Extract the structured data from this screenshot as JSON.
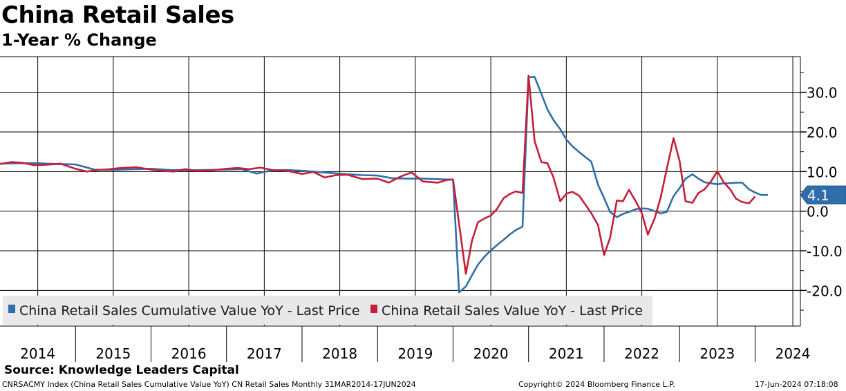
{
  "chart_data": {
    "type": "line",
    "title": "China Retail Sales",
    "subtitle": "1-Year % Change",
    "y_ticks": [
      "30.0",
      "20.0",
      "10.0",
      "0.0",
      "-10.0",
      "-20.0"
    ],
    "y_tick_values": [
      30,
      20,
      10,
      0,
      -10,
      -20
    ],
    "ylim": [
      -29,
      39
    ],
    "x_labels": [
      "2014",
      "2015",
      "2016",
      "2017",
      "2018",
      "2019",
      "2020",
      "2021",
      "2022",
      "2023",
      "2024"
    ],
    "x_range": [
      2014.0,
      2024.6
    ],
    "last_value_label": "4.1",
    "series": [
      {
        "name": "China Retail Sales Cumulative Value YoY - Last Price",
        "color": "#2f6eaa",
        "points": [
          [
            2014.0,
            12.0
          ],
          [
            2014.25,
            12.1
          ],
          [
            2014.5,
            12.1
          ],
          [
            2014.75,
            11.9
          ],
          [
            2015.0,
            11.8
          ],
          [
            2015.25,
            10.5
          ],
          [
            2015.5,
            10.4
          ],
          [
            2015.75,
            10.6
          ],
          [
            2016.0,
            10.7
          ],
          [
            2016.25,
            10.4
          ],
          [
            2016.5,
            10.3
          ],
          [
            2016.75,
            10.4
          ],
          [
            2017.0,
            10.5
          ],
          [
            2017.2,
            10.6
          ],
          [
            2017.4,
            9.5
          ],
          [
            2017.6,
            10.3
          ],
          [
            2017.8,
            10.4
          ],
          [
            2018.0,
            10.2
          ],
          [
            2018.2,
            9.9
          ],
          [
            2018.4,
            9.6
          ],
          [
            2018.6,
            9.3
          ],
          [
            2018.8,
            9.1
          ],
          [
            2019.0,
            9.0
          ],
          [
            2019.2,
            8.3
          ],
          [
            2019.4,
            8.2
          ],
          [
            2019.6,
            8.2
          ],
          [
            2019.75,
            8.1
          ],
          [
            2019.92,
            8.0
          ],
          [
            2020.0,
            8.0
          ],
          [
            2020.08,
            -20.5
          ],
          [
            2020.17,
            -19.0
          ],
          [
            2020.25,
            -16.2
          ],
          [
            2020.33,
            -13.5
          ],
          [
            2020.42,
            -11.4
          ],
          [
            2020.5,
            -9.9
          ],
          [
            2020.58,
            -8.6
          ],
          [
            2020.67,
            -7.2
          ],
          [
            2020.75,
            -5.9
          ],
          [
            2020.83,
            -4.8
          ],
          [
            2020.92,
            -3.9
          ],
          [
            2021.0,
            33.8
          ],
          [
            2021.08,
            33.9
          ],
          [
            2021.17,
            29.6
          ],
          [
            2021.25,
            25.7
          ],
          [
            2021.33,
            23.0
          ],
          [
            2021.42,
            20.7
          ],
          [
            2021.5,
            18.1
          ],
          [
            2021.58,
            16.4
          ],
          [
            2021.67,
            14.9
          ],
          [
            2021.75,
            13.7
          ],
          [
            2021.83,
            12.5
          ],
          [
            2021.92,
            6.7
          ],
          [
            2022.0,
            3.3
          ],
          [
            2022.08,
            -0.2
          ],
          [
            2022.17,
            -1.5
          ],
          [
            2022.25,
            -0.7
          ],
          [
            2022.33,
            -0.2
          ],
          [
            2022.42,
            0.5
          ],
          [
            2022.5,
            0.7
          ],
          [
            2022.58,
            0.6
          ],
          [
            2022.67,
            0.0
          ],
          [
            2022.75,
            -0.6
          ],
          [
            2022.83,
            -0.2
          ],
          [
            2022.92,
            3.8
          ],
          [
            2023.0,
            5.8
          ],
          [
            2023.08,
            8.2
          ],
          [
            2023.17,
            9.3
          ],
          [
            2023.25,
            8.2
          ],
          [
            2023.33,
            7.3
          ],
          [
            2023.42,
            7.0
          ],
          [
            2023.5,
            6.8
          ],
          [
            2023.58,
            7.0
          ],
          [
            2023.67,
            7.1
          ],
          [
            2023.75,
            7.2
          ],
          [
            2023.83,
            7.2
          ],
          [
            2023.92,
            5.5
          ],
          [
            2024.0,
            4.7
          ],
          [
            2024.08,
            4.1
          ],
          [
            2024.17,
            4.1
          ]
        ]
      },
      {
        "name": "China Retail Sales Value YoY - Last Price",
        "color": "#c41e3a",
        "points": [
          [
            2014.0,
            11.9
          ],
          [
            2014.15,
            12.4
          ],
          [
            2014.3,
            12.2
          ],
          [
            2014.45,
            11.6
          ],
          [
            2014.6,
            11.7
          ],
          [
            2014.8,
            12.0
          ],
          [
            2015.0,
            10.7
          ],
          [
            2015.15,
            10.0
          ],
          [
            2015.3,
            10.4
          ],
          [
            2015.45,
            10.6
          ],
          [
            2015.6,
            10.9
          ],
          [
            2015.8,
            11.1
          ],
          [
            2016.0,
            10.5
          ],
          [
            2016.15,
            10.2
          ],
          [
            2016.3,
            10.0
          ],
          [
            2016.45,
            10.6
          ],
          [
            2016.6,
            10.2
          ],
          [
            2016.8,
            10.3
          ],
          [
            2017.0,
            10.7
          ],
          [
            2017.15,
            10.9
          ],
          [
            2017.3,
            10.6
          ],
          [
            2017.45,
            11.0
          ],
          [
            2017.6,
            10.4
          ],
          [
            2017.8,
            10.2
          ],
          [
            2018.0,
            9.4
          ],
          [
            2018.15,
            9.9
          ],
          [
            2018.3,
            8.5
          ],
          [
            2018.45,
            9.1
          ],
          [
            2018.6,
            9.2
          ],
          [
            2018.8,
            8.1
          ],
          [
            2019.0,
            8.2
          ],
          [
            2019.15,
            7.2
          ],
          [
            2019.3,
            8.7
          ],
          [
            2019.45,
            9.8
          ],
          [
            2019.6,
            7.5
          ],
          [
            2019.8,
            7.2
          ],
          [
            2019.92,
            7.9
          ],
          [
            2020.0,
            8.0
          ],
          [
            2020.17,
            -15.8
          ],
          [
            2020.25,
            -7.5
          ],
          [
            2020.33,
            -2.8
          ],
          [
            2020.42,
            -1.8
          ],
          [
            2020.5,
            -1.1
          ],
          [
            2020.58,
            0.5
          ],
          [
            2020.67,
            3.3
          ],
          [
            2020.75,
            4.3
          ],
          [
            2020.83,
            5.0
          ],
          [
            2020.92,
            4.6
          ],
          [
            2021.0,
            34.2
          ],
          [
            2021.08,
            17.7
          ],
          [
            2021.17,
            12.4
          ],
          [
            2021.25,
            12.1
          ],
          [
            2021.33,
            8.5
          ],
          [
            2021.42,
            2.5
          ],
          [
            2021.5,
            4.4
          ],
          [
            2021.58,
            4.9
          ],
          [
            2021.67,
            3.9
          ],
          [
            2021.75,
            1.7
          ],
          [
            2021.83,
            -0.5
          ],
          [
            2021.92,
            -3.5
          ],
          [
            2022.0,
            -11.1
          ],
          [
            2022.08,
            -6.7
          ],
          [
            2022.17,
            2.7
          ],
          [
            2022.25,
            2.5
          ],
          [
            2022.33,
            5.4
          ],
          [
            2022.42,
            2.5
          ],
          [
            2022.5,
            -0.5
          ],
          [
            2022.58,
            -5.9
          ],
          [
            2022.67,
            -1.8
          ],
          [
            2022.75,
            3.5
          ],
          [
            2022.83,
            10.6
          ],
          [
            2022.92,
            18.4
          ],
          [
            2023.0,
            12.7
          ],
          [
            2023.08,
            2.5
          ],
          [
            2023.17,
            2.1
          ],
          [
            2023.25,
            4.6
          ],
          [
            2023.33,
            5.5
          ],
          [
            2023.42,
            7.6
          ],
          [
            2023.5,
            10.1
          ],
          [
            2023.58,
            7.4
          ],
          [
            2023.67,
            5.5
          ],
          [
            2023.75,
            3.1
          ],
          [
            2023.83,
            2.3
          ],
          [
            2023.92,
            2.0
          ],
          [
            2024.0,
            3.7
          ]
        ]
      }
    ]
  },
  "source": "Source: Knowledge Leaders Capital",
  "footer": {
    "left": "CNRSACMY Index (China Retail Sales Cumulative Value YoY) CN Retail Sales  Monthly 31MAR2014-17JUN2024",
    "mid": "Copyright© 2024 Bloomberg Finance L.P.",
    "right": "17-Jun-2024 07:18:08"
  }
}
